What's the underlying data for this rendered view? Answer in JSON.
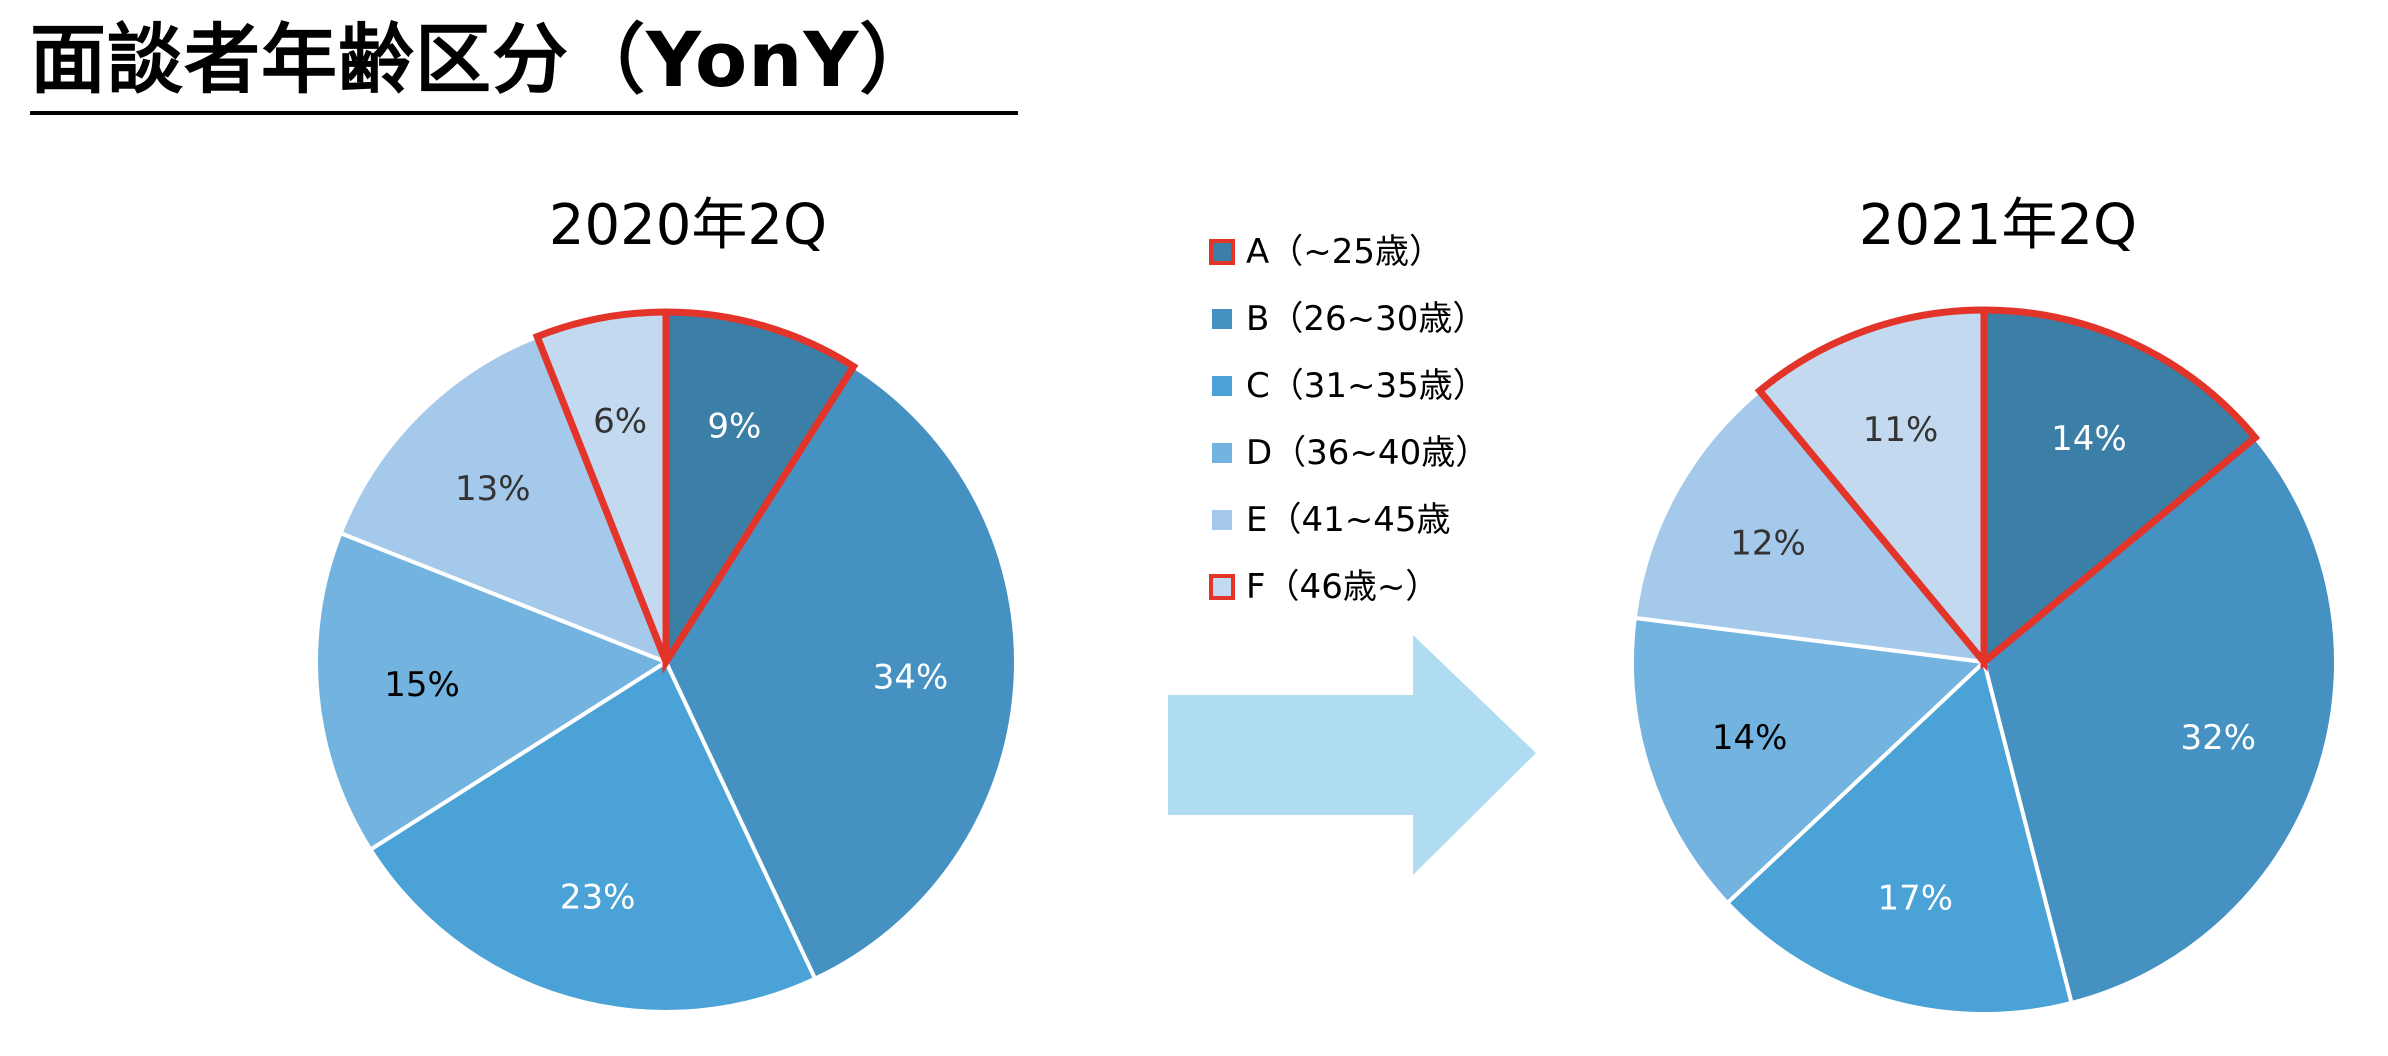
{
  "page_title": "面談者年齢区分（YonY）",
  "colors": {
    "A": "#3b7ea6",
    "B": "#4591c2",
    "C": "#4ba2d6",
    "D": "#72b3e0",
    "E": "#a4c9ea",
    "F": "#c3d9ef",
    "highlight": "#e3342a",
    "arrow": "#b0dcf2"
  },
  "legend": [
    {
      "key": "A",
      "label": "A（~25歳）",
      "highlighted": true
    },
    {
      "key": "B",
      "label": "B（26~30歳）",
      "highlighted": false
    },
    {
      "key": "C",
      "label": "C（31~35歳）",
      "highlighted": false
    },
    {
      "key": "D",
      "label": "D（36~40歳）",
      "highlighted": false
    },
    {
      "key": "E",
      "label": "E（41~45歳",
      "highlighted": false
    },
    {
      "key": "F",
      "label": "F（46歳~）",
      "highlighted": true
    }
  ],
  "chart_data": [
    {
      "type": "pie",
      "title": "2020年2Q",
      "categories": [
        "A",
        "B",
        "C",
        "D",
        "E",
        "F"
      ],
      "values": [
        9,
        34,
        23,
        15,
        13,
        6
      ],
      "labels": [
        "9%",
        "34%",
        "23%",
        "15%",
        "13%",
        "6%"
      ],
      "highlighted": [
        "A",
        "F"
      ]
    },
    {
      "type": "pie",
      "title": "2021年2Q",
      "categories": [
        "A",
        "B",
        "C",
        "D",
        "E",
        "F"
      ],
      "values": [
        14,
        32,
        17,
        14,
        12,
        11
      ],
      "labels": [
        "14%",
        "32%",
        "17%",
        "14%",
        "12%",
        "11%"
      ],
      "highlighted": [
        "A",
        "F"
      ]
    }
  ]
}
